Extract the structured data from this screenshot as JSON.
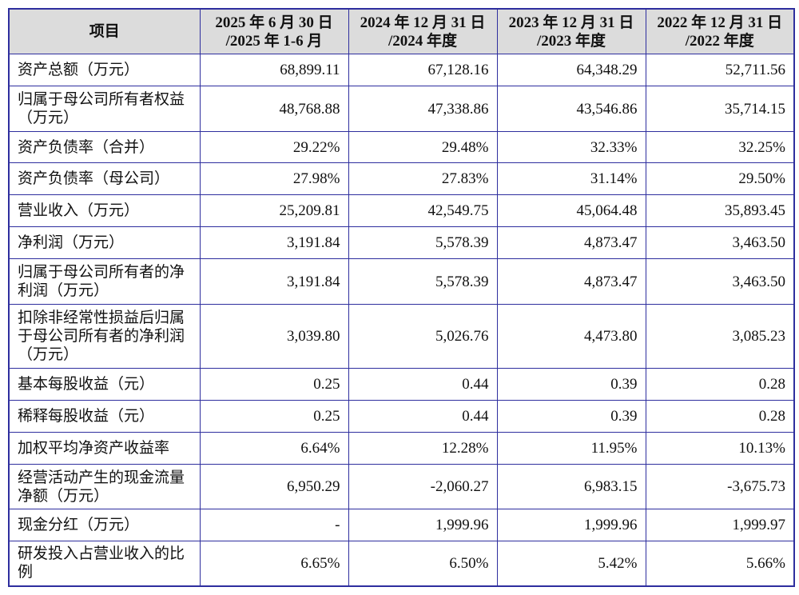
{
  "header": {
    "item": "项目",
    "periods": [
      [
        "2025 年 6 月 30 日",
        "/2025 年 1-6 月"
      ],
      [
        "2024 年 12 月 31 日",
        "/2024 年度"
      ],
      [
        "2023 年 12 月 31 日",
        "/2023 年度"
      ],
      [
        "2022 年 12 月 31 日",
        "/2022 年度"
      ]
    ]
  },
  "rows": [
    {
      "label": "资产总额（万元）",
      "values": [
        "68,899.11",
        "67,128.16",
        "64,348.29",
        "52,711.56"
      ]
    },
    {
      "label": "归属于母公司所有者权益（万元）",
      "values": [
        "48,768.88",
        "47,338.86",
        "43,546.86",
        "35,714.15"
      ]
    },
    {
      "label": "资产负债率（合并）",
      "values": [
        "29.22%",
        "29.48%",
        "32.33%",
        "32.25%"
      ]
    },
    {
      "label": "资产负债率（母公司）",
      "values": [
        "27.98%",
        "27.83%",
        "31.14%",
        "29.50%"
      ]
    },
    {
      "label": "营业收入（万元）",
      "values": [
        "25,209.81",
        "42,549.75",
        "45,064.48",
        "35,893.45"
      ]
    },
    {
      "label": "净利润（万元）",
      "values": [
        "3,191.84",
        "5,578.39",
        "4,873.47",
        "3,463.50"
      ]
    },
    {
      "label": "归属于母公司所有者的净利润（万元）",
      "values": [
        "3,191.84",
        "5,578.39",
        "4,873.47",
        "3,463.50"
      ]
    },
    {
      "label": "扣除非经常性损益后归属于母公司所有者的净利润（万元）",
      "values": [
        "3,039.80",
        "5,026.76",
        "4,473.80",
        "3,085.23"
      ]
    },
    {
      "label": "基本每股收益（元）",
      "values": [
        "0.25",
        "0.44",
        "0.39",
        "0.28"
      ]
    },
    {
      "label": "稀释每股收益（元）",
      "values": [
        "0.25",
        "0.44",
        "0.39",
        "0.28"
      ]
    },
    {
      "label": "加权平均净资产收益率",
      "values": [
        "6.64%",
        "12.28%",
        "11.95%",
        "10.13%"
      ]
    },
    {
      "label": "经营活动产生的现金流量净额（万元）",
      "values": [
        "6,950.29",
        "-2,060.27",
        "6,983.15",
        "-3,675.73"
      ]
    },
    {
      "label": "现金分红（万元）",
      "values": [
        "-",
        "1,999.96",
        "1,999.96",
        "1,999.97"
      ]
    },
    {
      "label": "研发投入占营业收入的比例",
      "values": [
        "6.65%",
        "6.50%",
        "5.42%",
        "5.66%"
      ]
    }
  ]
}
